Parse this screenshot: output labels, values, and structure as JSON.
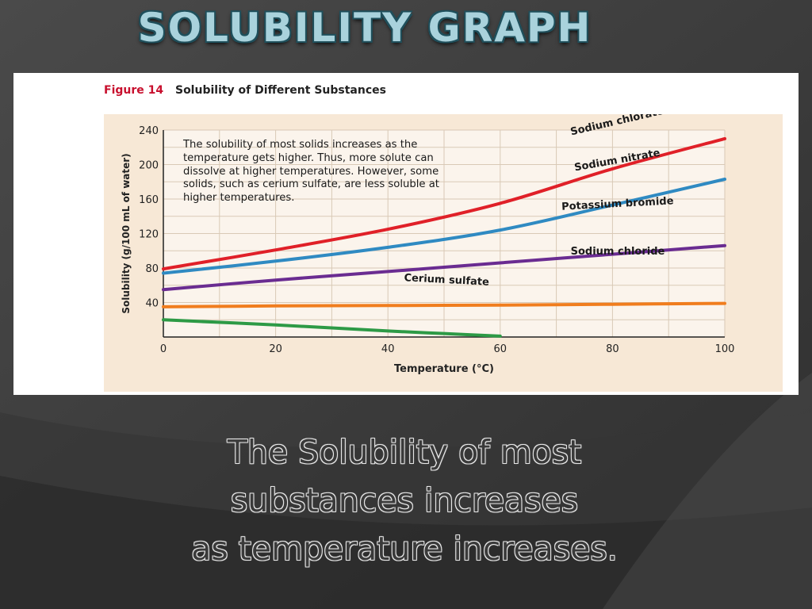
{
  "slide": {
    "title": "SOLUBILITY GRAPH",
    "body_lines": [
      "The Solubility of most",
      "substances increases",
      "as temperature increases."
    ]
  },
  "figure": {
    "number": "Figure 14",
    "caption": "Solubility of Different Substances",
    "note": "The solubility of most solids increases as the temperature gets higher. Thus, more solute can dissolve at higher temperatures. However, some solids, such as cerium sulfate, are less soluble at higher temperatures."
  },
  "chart_data": {
    "type": "line",
    "title": "Solubility of Different Substances",
    "xlabel": "Temperature (°C)",
    "ylabel": "Solubility (g/100 mL of water)",
    "xlim": [
      0,
      100
    ],
    "ylim": [
      0,
      240
    ],
    "xticks": [
      "0",
      "20",
      "40",
      "60",
      "80",
      "100"
    ],
    "yticks": [
      "40",
      "80",
      "120",
      "160",
      "200",
      "240"
    ],
    "grid": true,
    "series": [
      {
        "name": "Sodium chlorate",
        "color": "#e02028",
        "x": [
          0,
          20,
          40,
          60,
          80,
          100
        ],
        "y": [
          79,
          101,
          125,
          155,
          195,
          230
        ]
      },
      {
        "name": "Sodium nitrate",
        "color": "#2f8ac2",
        "x": [
          0,
          20,
          40,
          60,
          80,
          100
        ],
        "y": [
          74,
          88,
          104,
          124,
          153,
          183
        ]
      },
      {
        "name": "Potassium bromide",
        "color": "#6a2c91",
        "x": [
          0,
          20,
          40,
          60,
          80,
          100
        ],
        "y": [
          55,
          66,
          76,
          86,
          96,
          106
        ]
      },
      {
        "name": "Sodium chloride",
        "color": "#f07d1e",
        "x": [
          0,
          20,
          40,
          60,
          80,
          100
        ],
        "y": [
          35,
          36,
          36.5,
          37,
          38,
          39
        ]
      },
      {
        "name": "Cerium sulfate",
        "color": "#2d9a46",
        "x": [
          0,
          20,
          40,
          50,
          60
        ],
        "y": [
          20,
          14,
          7,
          4,
          1
        ]
      }
    ]
  }
}
